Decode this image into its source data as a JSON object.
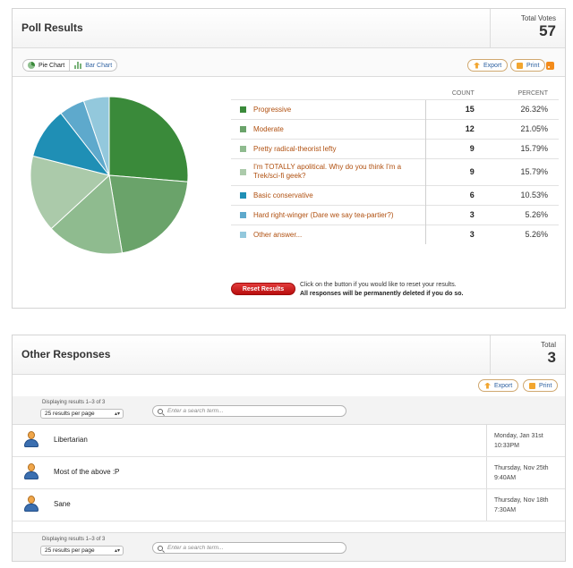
{
  "poll": {
    "title": "Poll Results",
    "total_label": "Total Votes",
    "total_value": "57",
    "tabs": {
      "pie": "Pie Chart",
      "bar": "Bar Chart"
    },
    "export_label": "Export",
    "print_label": "Print",
    "columns": {
      "count": "COUNT",
      "percent": "PERCENT"
    },
    "reset_label": "Reset Results",
    "reset_note_1": "Click on the button if you would like to reset your results.",
    "reset_note_2": "All responses will be permanently deleted if you do so."
  },
  "chart_data": {
    "type": "pie",
    "categories": [
      "Progressive",
      "Moderate",
      "Pretty radical-theorist lefty",
      "I'm TOTALLY apolitical. Why do you think I'm a Trek/sci-fi geek?",
      "Basic conservative",
      "Hard right-winger (Dare we say tea-partier?)",
      "Other answer..."
    ],
    "values": [
      15,
      12,
      9,
      9,
      6,
      3,
      3
    ],
    "percents": [
      "26.32%",
      "21.05%",
      "15.79%",
      "15.79%",
      "10.53%",
      "5.26%",
      "5.26%"
    ],
    "colors": [
      "#3a8a3a",
      "#6aa36a",
      "#8fbb8f",
      "#abcaaa",
      "#1f8fb5",
      "#5ea9cc",
      "#93c8dc"
    ]
  },
  "other": {
    "title": "Other Responses",
    "total_label": "Total",
    "total_value": "3",
    "export_label": "Export",
    "print_label": "Print",
    "displaying": "Displaying results 1–3 of 3",
    "per_page": "25 results per page",
    "search_placeholder": "Enter a search term...",
    "responses": [
      {
        "text": "Libertarian",
        "date": "Monday, Jan 31st",
        "time": "10:33PM"
      },
      {
        "text": "Most of the above :P",
        "date": "Thursday, Nov 25th",
        "time": "9:40AM"
      },
      {
        "text": "Sane",
        "date": "Thursday, Nov 18th",
        "time": "7:30AM"
      }
    ]
  }
}
